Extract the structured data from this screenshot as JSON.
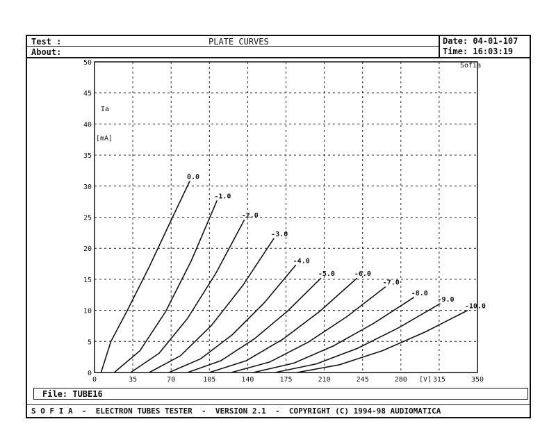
{
  "header": {
    "test_label": "Test :",
    "about_label": "About:",
    "title": "PLATE CURVES",
    "date": "Date: 04-01-107",
    "time": "Time: 16:03:19"
  },
  "file": "File: TUBE16",
  "footer": "S O F I A  -  ELECTRON TUBES TESTER  -  VERSION 2.1  -  COPYRIGHT (C) 1994-98 AUDIOMATICA",
  "chart_data": {
    "type": "line",
    "title": "PLATE CURVES",
    "ylabel": "Ia [mA]",
    "xlabel": "[V]",
    "watermark": "Sofia",
    "xlim": [
      0,
      350
    ],
    "ylim": [
      0,
      50
    ],
    "grid": true,
    "xticks": [
      0,
      35,
      70,
      105,
      140,
      175,
      210,
      245,
      280,
      315,
      350
    ],
    "yticks": [
      0,
      5,
      10,
      15,
      20,
      25,
      30,
      35,
      40,
      45,
      50
    ],
    "series": [
      {
        "name": "0.0",
        "points": [
          [
            6,
            0
          ],
          [
            15,
            5
          ],
          [
            30,
            10
          ],
          [
            50,
            17
          ],
          [
            70,
            24.5
          ],
          [
            87,
            30.8
          ]
        ]
      },
      {
        "name": "-1.0",
        "points": [
          [
            18,
            0
          ],
          [
            41.5,
            3.5
          ],
          [
            65,
            9.8
          ],
          [
            88.5,
            18
          ],
          [
            112,
            27.7
          ]
        ]
      },
      {
        "name": "-2.0",
        "points": [
          [
            33,
            0
          ],
          [
            59,
            3.1
          ],
          [
            85,
            8.7
          ],
          [
            111,
            16
          ],
          [
            137,
            24.6
          ]
        ]
      },
      {
        "name": "-3.0",
        "points": [
          [
            50,
            0
          ],
          [
            78.5,
            2.7
          ],
          [
            107,
            7.6
          ],
          [
            135.5,
            14
          ],
          [
            164,
            21.6
          ]
        ]
      },
      {
        "name": "-4.0",
        "points": [
          [
            68,
            0
          ],
          [
            97,
            2.2
          ],
          [
            126,
            6.1
          ],
          [
            155,
            11.2
          ],
          [
            184,
            17.3
          ]
        ]
      },
      {
        "name": "-5.0",
        "points": [
          [
            85,
            0
          ],
          [
            115.5,
            1.9
          ],
          [
            146,
            5.4
          ],
          [
            176.5,
            9.9
          ],
          [
            207,
            15.2
          ]
        ]
      },
      {
        "name": "-6.0",
        "points": [
          [
            105,
            0
          ],
          [
            138.75,
            1.9
          ],
          [
            172.5,
            5.4
          ],
          [
            206.25,
            9.9
          ],
          [
            240,
            15.2
          ]
        ]
      },
      {
        "name": "-7.0",
        "points": [
          [
            125,
            0
          ],
          [
            160.25,
            1.7
          ],
          [
            195.5,
            4.9
          ],
          [
            230.75,
            9
          ],
          [
            266,
            13.8
          ]
        ]
      },
      {
        "name": "-8.0",
        "points": [
          [
            145,
            0
          ],
          [
            182,
            1.5
          ],
          [
            218.5,
            4.3
          ],
          [
            255,
            7.9
          ],
          [
            292,
            12.1
          ]
        ]
      },
      {
        "name": "-9.0",
        "points": [
          [
            165,
            0
          ],
          [
            203,
            1.4
          ],
          [
            240.5,
            3.9
          ],
          [
            278,
            7.2
          ],
          [
            316,
            11.1
          ]
        ]
      },
      {
        "name": "-10.0",
        "points": [
          [
            185,
            0
          ],
          [
            224,
            1.25
          ],
          [
            263,
            3.5
          ],
          [
            302,
            6.5
          ],
          [
            341,
            10
          ]
        ]
      }
    ]
  }
}
